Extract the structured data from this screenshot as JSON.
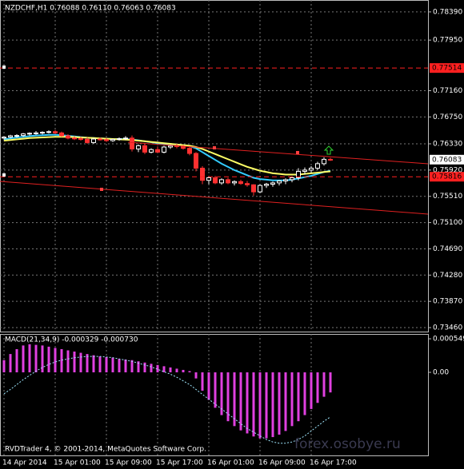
{
  "chart_data": [
    {
      "type": "candlestick",
      "title": "NZDCHF,H1  0.76088 0.76110 0.76063 0.76083",
      "categories": [
        "14 Apr 2014",
        null,
        null,
        null,
        null,
        null,
        null,
        null,
        "15 Apr 01:00",
        null,
        null,
        null,
        null,
        null,
        null,
        null,
        "15 Apr 09:00",
        null,
        null,
        null,
        null,
        null,
        null,
        null,
        "15 Apr 17:00",
        null,
        null,
        null,
        null,
        null,
        null,
        null,
        "16 Apr 01:00",
        null,
        null,
        null,
        null,
        null,
        null,
        null,
        "16 Apr 09:00",
        null,
        null,
        null,
        null,
        null,
        null,
        null,
        "16 Apr 17:00",
        null,
        null,
        null
      ],
      "open": [
        0.7642,
        0.76435,
        0.76455,
        0.7646,
        0.76485,
        0.76495,
        0.765,
        0.7651,
        0.7652,
        0.765,
        0.76455,
        0.7642,
        0.7641,
        0.764,
        0.7635,
        0.76405,
        0.76395,
        0.7638,
        0.764,
        0.7641,
        0.7642,
        0.7625,
        0.763,
        0.762,
        0.7624,
        0.762,
        0.7628,
        0.763,
        0.7629,
        0.7626,
        0.7618,
        0.7595,
        0.7576,
        0.758,
        0.7572,
        0.7577,
        0.7572,
        0.7574,
        0.7571,
        0.7569,
        0.7558,
        0.7568,
        0.757,
        0.7572,
        0.7575,
        0.7577,
        0.758,
        0.759,
        0.7592,
        0.7595,
        0.7602,
        0.76088
      ],
      "high": [
        0.7645,
        0.7647,
        0.7648,
        0.765,
        0.7651,
        0.7653,
        0.76525,
        0.7654,
        0.76545,
        0.7652,
        0.7648,
        0.7645,
        0.7644,
        0.7643,
        0.7642,
        0.7643,
        0.7642,
        0.7641,
        0.7643,
        0.7645,
        0.7646,
        0.7632,
        0.7633,
        0.7626,
        0.7629,
        0.763,
        0.7632,
        0.7633,
        0.7631,
        0.7628,
        0.762,
        0.7598,
        0.7582,
        0.7583,
        0.7579,
        0.758,
        0.7576,
        0.7577,
        0.7575,
        0.757,
        0.757,
        0.7572,
        0.7574,
        0.7576,
        0.7579,
        0.7582,
        0.7595,
        0.7596,
        0.7598,
        0.7605,
        0.7612,
        0.7611
      ],
      "low": [
        0.76395,
        0.7642,
        0.7643,
        0.7644,
        0.7646,
        0.7647,
        0.76475,
        0.7649,
        0.7648,
        0.7644,
        0.764,
        0.7639,
        0.7638,
        0.7633,
        0.7633,
        0.7638,
        0.7636,
        0.7636,
        0.7638,
        0.7639,
        0.7621,
        0.762,
        0.7617,
        0.7618,
        0.7619,
        0.7618,
        0.7625,
        0.7626,
        0.7624,
        0.7615,
        0.759,
        0.757,
        0.757,
        0.757,
        0.7569,
        0.757,
        0.7568,
        0.7569,
        0.7566,
        0.7552,
        0.7556,
        0.7564,
        0.7566,
        0.7568,
        0.757,
        0.7573,
        0.7576,
        0.7585,
        0.7588,
        0.7592,
        0.7599,
        0.76063
      ],
      "close": [
        0.76435,
        0.76455,
        0.7646,
        0.76485,
        0.76495,
        0.765,
        0.7651,
        0.7652,
        0.765,
        0.76455,
        0.7642,
        0.7641,
        0.764,
        0.7635,
        0.76405,
        0.76395,
        0.7638,
        0.764,
        0.7641,
        0.7642,
        0.7625,
        0.763,
        0.762,
        0.7624,
        0.762,
        0.7628,
        0.763,
        0.7629,
        0.7626,
        0.7618,
        0.7595,
        0.7576,
        0.758,
        0.7572,
        0.7577,
        0.7572,
        0.7574,
        0.7571,
        0.7569,
        0.7558,
        0.7568,
        0.757,
        0.7572,
        0.7575,
        0.7577,
        0.758,
        0.759,
        0.7592,
        0.7595,
        0.7602,
        0.76088,
        0.76083
      ],
      "up_color": "#ffffff",
      "down_color": "#ff3030",
      "lines": [
        {
          "color": "#33ccff",
          "values": [
            0.764,
            0.76415,
            0.7643,
            0.7644,
            0.7645,
            0.7646,
            0.76465,
            0.7647,
            0.7647,
            0.76465,
            0.76455,
            0.76445,
            0.76435,
            0.76425,
            0.7642,
            0.76415,
            0.7641,
            0.76405,
            0.76405,
            0.76405,
            0.76395,
            0.76385,
            0.7637,
            0.76355,
            0.7634,
            0.7633,
            0.76325,
            0.7632,
            0.7631,
            0.76295,
            0.7626,
            0.762,
            0.7614,
            0.7608,
            0.7602,
            0.7597,
            0.7592,
            0.7588,
            0.7584,
            0.758,
            0.7578,
            0.7577,
            0.7576,
            0.7576,
            0.7576,
            0.7577,
            0.7579,
            0.7581,
            0.7583,
            0.7586,
            0.7589,
            0.7591
          ]
        },
        {
          "color": "#ffff66",
          "values": [
            0.7638,
            0.7639,
            0.764,
            0.7641,
            0.7642,
            0.76425,
            0.7643,
            0.76435,
            0.7644,
            0.7644,
            0.7644,
            0.76435,
            0.7643,
            0.76425,
            0.7642,
            0.76415,
            0.7641,
            0.76405,
            0.764,
            0.76395,
            0.7639,
            0.7638,
            0.7637,
            0.7636,
            0.7635,
            0.7634,
            0.7633,
            0.7632,
            0.7631,
            0.763,
            0.7628,
            0.7625,
            0.7621,
            0.7617,
            0.7613,
            0.7609,
            0.7605,
            0.7601,
            0.7597,
            0.7594,
            0.7591,
            0.7589,
            0.7587,
            0.7586,
            0.7585,
            0.7585,
            0.7585,
            0.7586,
            0.7587,
            0.7588,
            0.7589,
            0.759
          ]
        }
      ],
      "hlines": [
        0.77514,
        0.75816
      ],
      "hline_color": "#ff2020",
      "last_price": 0.76083,
      "ylim": [
        0.73398,
        0.78576
      ],
      "yticks": [
        {
          "value": 0.7839,
          "label": "0.78390"
        },
        {
          "value": 0.7795,
          "label": "0.77950"
        },
        {
          "value": 0.7716,
          "label": "0.77160"
        },
        {
          "value": 0.7675,
          "label": "0.76750"
        },
        {
          "value": 0.7633,
          "label": "0.76330"
        },
        {
          "value": 0.7592,
          "label": "0.75920"
        },
        {
          "value": 0.7551,
          "label": "0.75510"
        },
        {
          "value": 0.751,
          "label": "0.75100"
        },
        {
          "value": 0.7469,
          "label": "0.74690"
        },
        {
          "value": 0.7428,
          "label": "0.74280"
        },
        {
          "value": 0.7387,
          "label": "0.73870"
        },
        {
          "value": 0.7346,
          "label": "0.73460"
        }
      ],
      "grid": true
    },
    {
      "type": "bar",
      "title": "MACD(21,34,9) -0.000329 -0.000730",
      "values": [
        0.0002,
        0.0003,
        0.00038,
        0.00044,
        0.00046,
        0.00045,
        0.00044,
        0.00042,
        0.0004,
        0.00038,
        0.00036,
        0.00034,
        0.00032,
        0.0003,
        0.00028,
        0.00026,
        0.00025,
        0.00024,
        0.00022,
        0.00021,
        0.0002,
        0.00018,
        0.00016,
        0.00014,
        0.00012,
        0.0001,
        8e-05,
        6e-05,
        4e-05,
        2e-05,
        -0.0001,
        -0.0003,
        -0.00045,
        -0.00058,
        -0.0007,
        -0.0008,
        -0.00088,
        -0.00095,
        -0.001,
        -0.00105,
        -0.00108,
        -0.00108,
        -0.00106,
        -0.00102,
        -0.00096,
        -0.00088,
        -0.0008,
        -0.0007,
        -0.0006,
        -0.0005,
        -0.0004,
        -0.000329
      ],
      "color": "#e040e0",
      "signal": {
        "color": "#a0e8ff",
        "values": [
          -0.00035,
          -0.00028,
          -0.0002,
          -0.00012,
          -5e-05,
          2e-05,
          8e-05,
          0.00013,
          0.00017,
          0.0002,
          0.00022,
          0.00024,
          0.00025,
          0.00026,
          0.00026,
          0.00026,
          0.00025,
          0.00024,
          0.00022,
          0.0002,
          0.00018,
          0.00015,
          0.00012,
          9e-05,
          5e-05,
          1e-05,
          -3e-05,
          -8e-05,
          -0.00014,
          -0.0002,
          -0.00028,
          -0.00036,
          -0.00044,
          -0.00052,
          -0.0006,
          -0.00068,
          -0.00076,
          -0.00084,
          -0.00092,
          -0.00098,
          -0.00104,
          -0.0011,
          -0.00114,
          -0.00116,
          -0.00116,
          -0.00114,
          -0.0011,
          -0.00104,
          -0.00096,
          -0.00088,
          -0.0008,
          -0.00073
        ]
      },
      "ylim": [
        -0.00136,
        0.000628
      ],
      "yticks": [
        0.000549,
        {
          "value": 0,
          "label": "0.00"
        }
      ]
    }
  ],
  "footer": "RVDTrader 4, © 2001-2014, MetaQuotes Software Corp.",
  "watermark": "forex.osobye.ru"
}
